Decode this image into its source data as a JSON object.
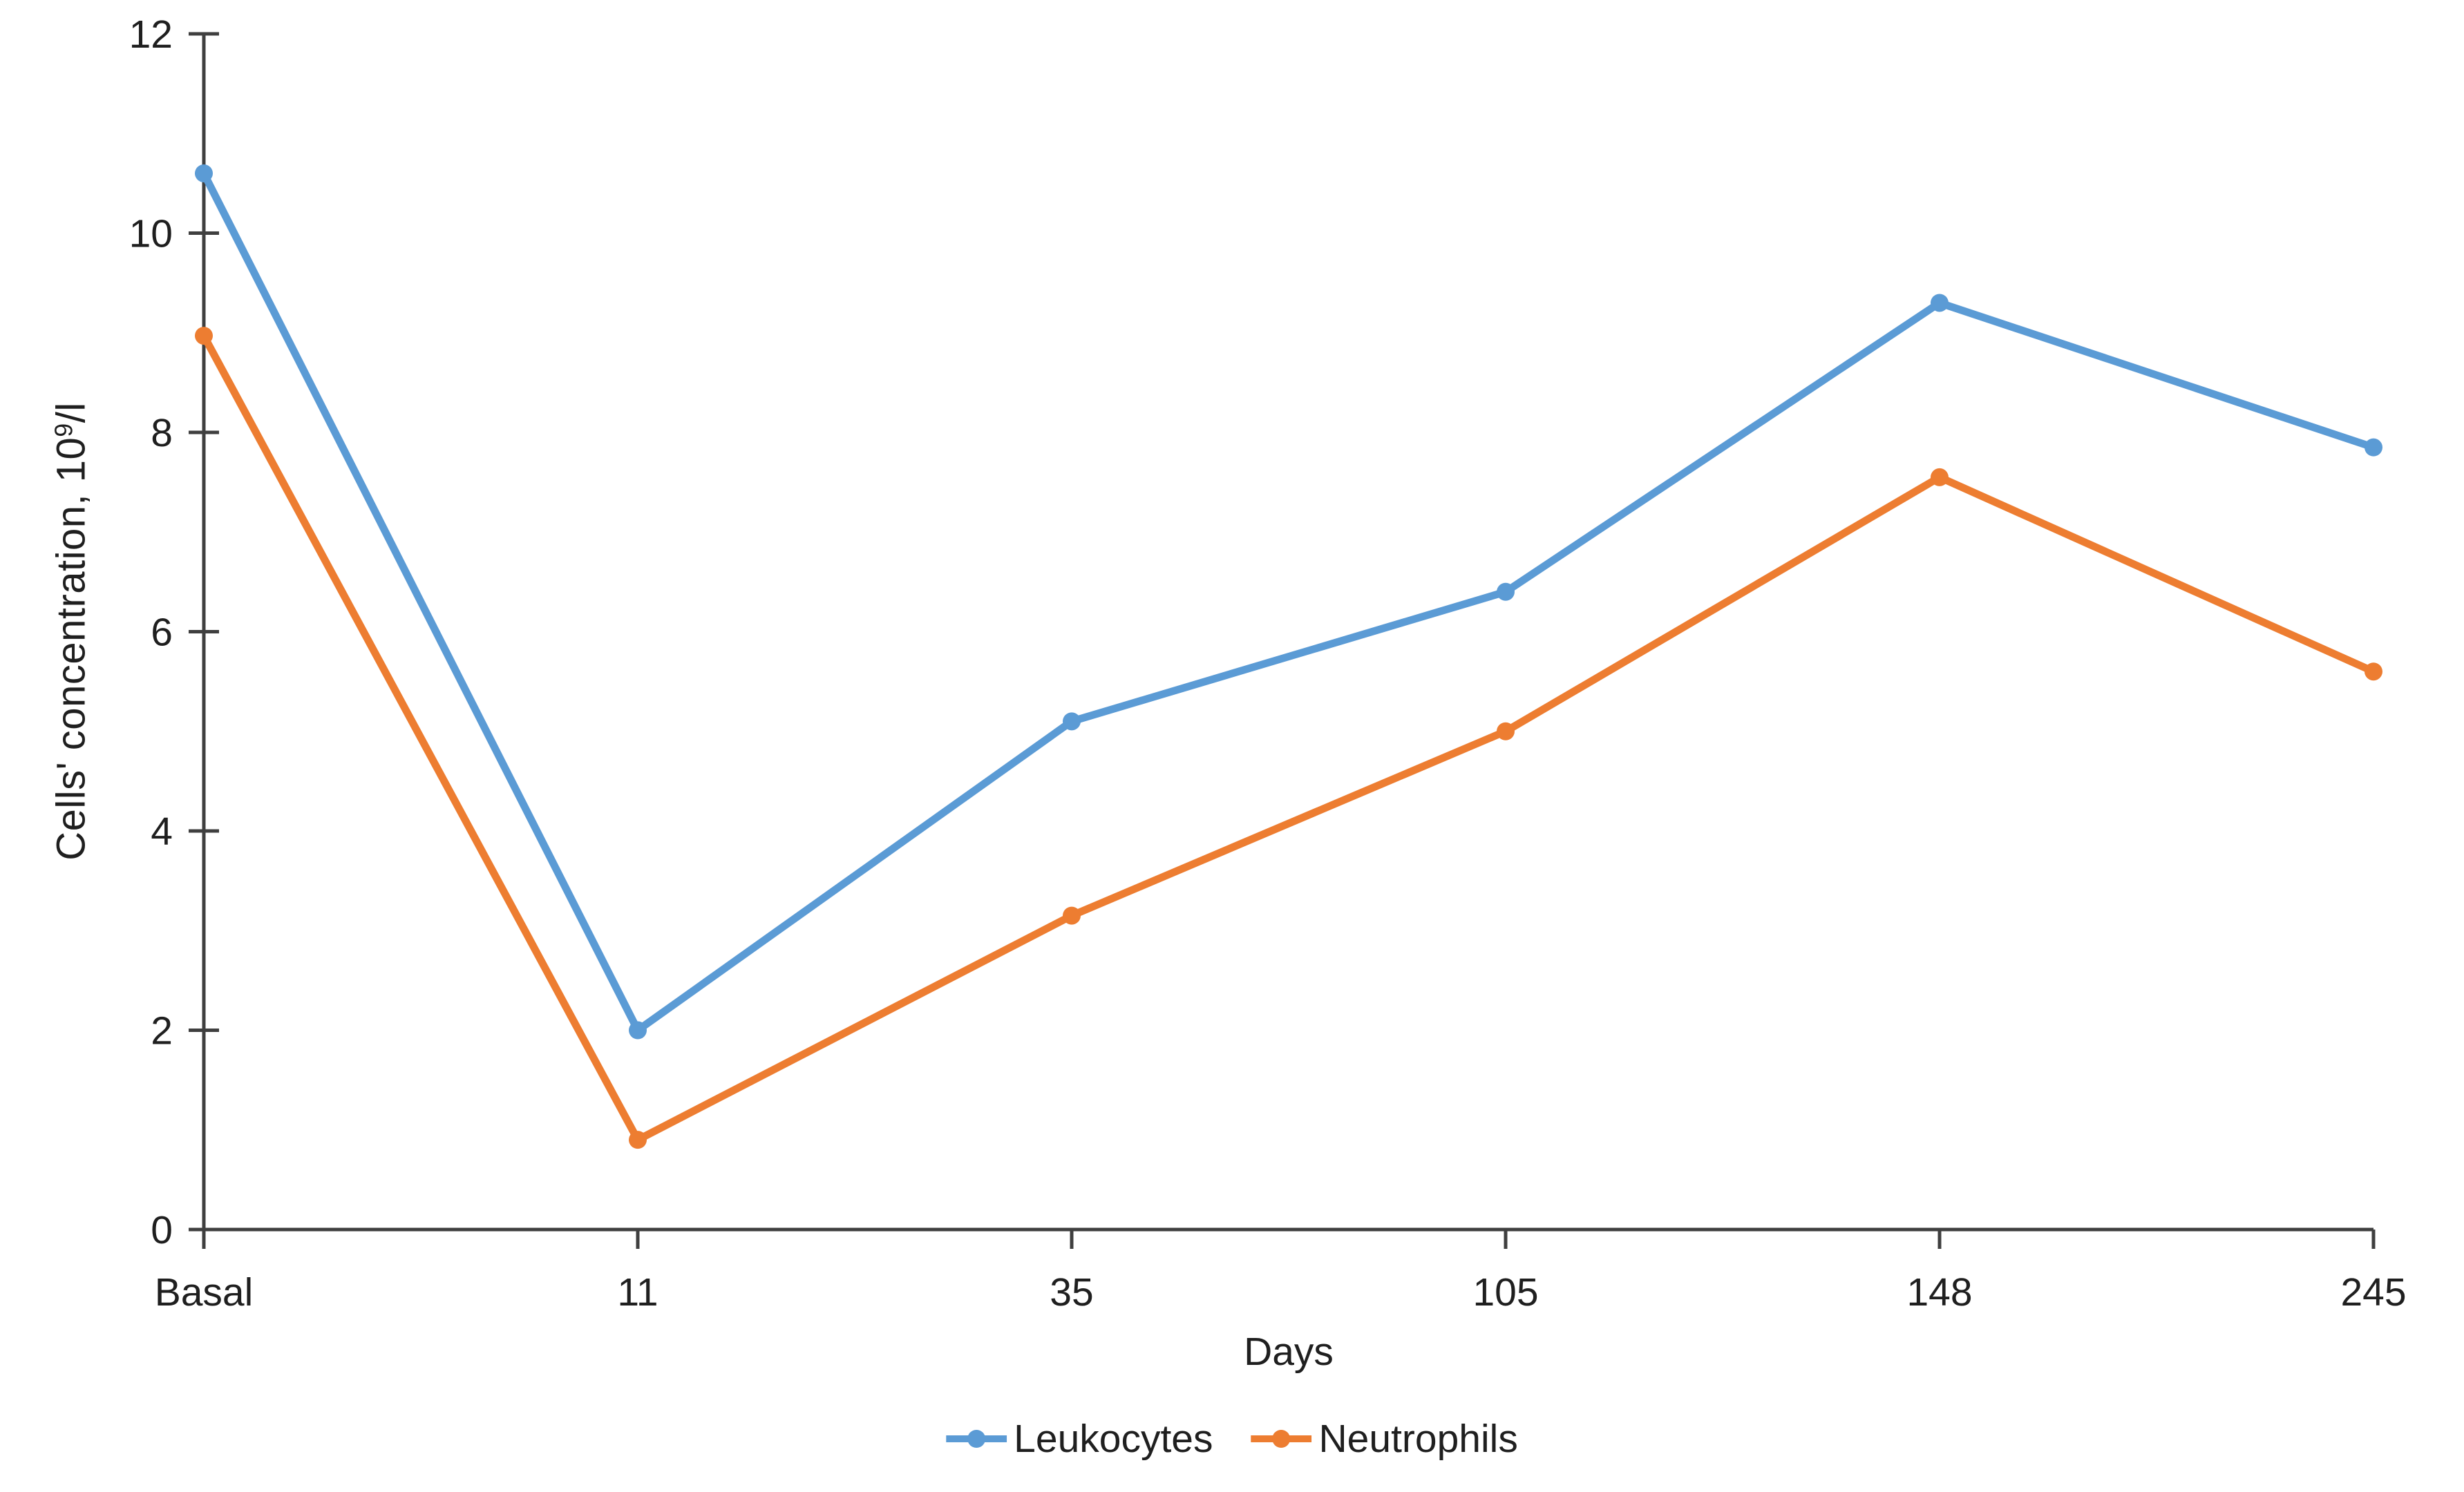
{
  "chart_data": {
    "type": "line",
    "categories": [
      "Basal",
      "11",
      "35",
      "105",
      "148",
      "245"
    ],
    "series": [
      {
        "name": "Leukocytes",
        "color": "#5B9BD5",
        "values": [
          10.6,
          2.0,
          5.1,
          6.4,
          9.3,
          7.85
        ]
      },
      {
        "name": "Neutrophils",
        "color": "#ED7D31",
        "values": [
          8.97,
          0.9,
          3.15,
          5.0,
          7.55,
          5.6
        ]
      }
    ],
    "title": "",
    "xlabel": "Days",
    "ylabel": "Cells' concentration, 10^9/l",
    "ylabel_parts": {
      "prefix": "Cells' concentration, 10",
      "sup": "9",
      "suffix": "/l"
    },
    "ylim": [
      0,
      12
    ],
    "ytick_step": 2,
    "yticks": [
      0,
      2,
      4,
      6,
      8,
      10,
      12
    ],
    "grid": false,
    "legend_position": "bottom",
    "marker": "circle"
  },
  "styles": {
    "axis_color": "#3f3f3f",
    "text_color": "#1f1f1f",
    "background": "#ffffff",
    "series_line_width": 11,
    "marker_radius": 13
  }
}
